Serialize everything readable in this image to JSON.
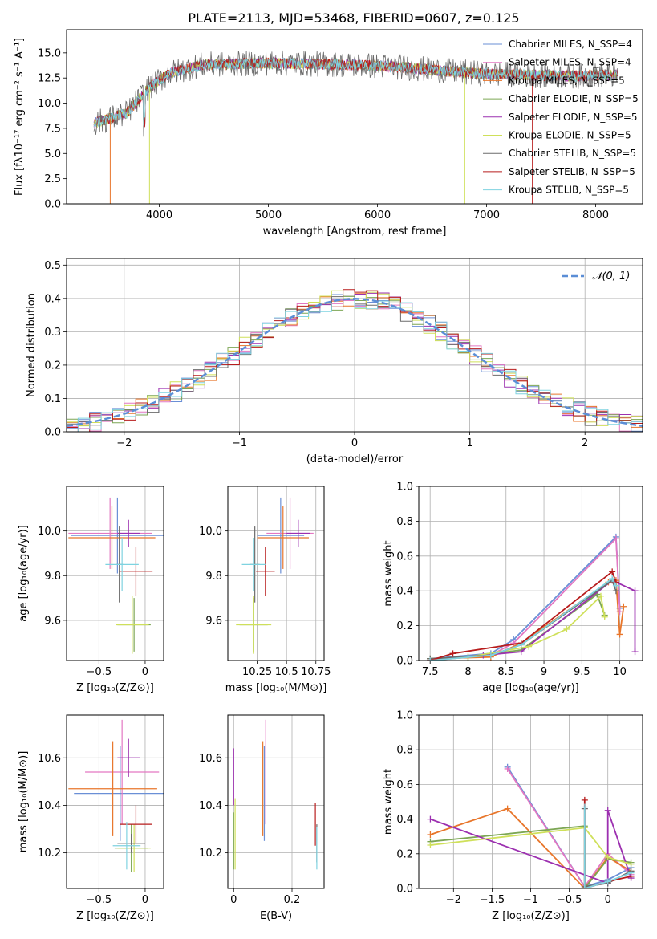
{
  "colors": {
    "chabrier_miles": "#6a8fd6",
    "salpeter_miles": "#e377c2",
    "kroupa_miles": "#e8762b",
    "chabrier_elodie": "#7ca654",
    "salpeter_elodie": "#9c30b0",
    "kroupa_elodie": "#cfe05a",
    "chabrier_stelib": "#6b6b6b",
    "salpeter_stelib": "#b71c1c",
    "kroupa_stelib": "#7fd3e0",
    "gaussian": "#5b8ed6"
  },
  "chart_data": [
    {
      "id": "spectrum",
      "type": "line",
      "title": "PLATE=2113, MJD=53468, FIBERID=0607, z=0.125",
      "xlabel": "wavelength [Angstrom, rest frame]",
      "ylabel": "Flux [fλ10⁻¹⁷ erg cm⁻² s⁻¹ A⁻¹]",
      "xlim": [
        3150,
        8430
      ],
      "ylim": [
        0,
        17.3
      ],
      "xticks": [
        4000,
        5000,
        6000,
        7000,
        8000
      ],
      "yticks": [
        0.0,
        2.5,
        5.0,
        7.5,
        10.0,
        12.5,
        15.0
      ],
      "legend_position": "right",
      "legend": [
        {
          "key": "chabrier_miles",
          "label": "Chabrier MILES, N_SSP=4"
        },
        {
          "key": "salpeter_miles",
          "label": "Salpeter MILES, N_SSP=4"
        },
        {
          "key": "kroupa_miles",
          "label": "Kroupa MILES, N_SSP=5"
        },
        {
          "key": "chabrier_elodie",
          "label": "Chabrier ELODIE, N_SSP=5"
        },
        {
          "key": "salpeter_elodie",
          "label": "Salpeter ELODIE, N_SSP=5"
        },
        {
          "key": "kroupa_elodie",
          "label": "Kroupa ELODIE, N_SSP=5"
        },
        {
          "key": "chabrier_stelib",
          "label": "Chabrier STELIB, N_SSP=5"
        },
        {
          "key": "salpeter_stelib",
          "label": "Salpeter STELIB, N_SSP=5"
        },
        {
          "key": "kroupa_stelib",
          "label": "Kroupa STELIB, N_SSP=5"
        }
      ],
      "continuum_wavelength": [
        3400,
        3700,
        3900,
        4100,
        4400,
        4700,
        5000,
        5400,
        5800,
        6200,
        6600,
        7000,
        7400,
        7800,
        8200
      ],
      "continuum_flux": [
        8.0,
        9.0,
        11.5,
        13.0,
        13.8,
        13.9,
        14.0,
        13.9,
        13.8,
        13.6,
        13.2,
        12.9,
        12.8,
        12.7,
        12.8
      ],
      "dropouts": [
        {
          "x": 3550,
          "key": "kroupa_miles"
        },
        {
          "x": 3910,
          "key": "kroupa_elodie"
        },
        {
          "x": 6800,
          "key": "kroupa_elodie"
        },
        {
          "x": 7420,
          "key": "salpeter_stelib"
        }
      ]
    },
    {
      "id": "residuals",
      "type": "line",
      "xlabel": "(data-model)/error",
      "ylabel": "Normed distribution",
      "xlim": [
        -2.5,
        2.5
      ],
      "ylim": [
        0,
        0.52
      ],
      "xticks": [
        -2,
        -1,
        0,
        1,
        2
      ],
      "yticks": [
        0.0,
        0.1,
        0.2,
        0.3,
        0.4,
        0.5
      ],
      "grid": true,
      "legend_position": "top-right",
      "legend_label": "𝒩(0, 1)",
      "bin_width": 0.1,
      "gaussian": {
        "mean": 0,
        "sigma": 1
      }
    },
    {
      "id": "age-vs-z",
      "type": "scatter",
      "xlabel": "Z [log₁₀(Z/Z⊙)]",
      "ylabel": "age  [log₁₀(age/yr)]",
      "xlim": [
        -0.85,
        0.2
      ],
      "ylim": [
        9.42,
        10.2
      ],
      "xticks": [
        -0.5,
        0.0
      ],
      "yticks": [
        9.6,
        9.8,
        10.0
      ],
      "grid": true,
      "points": [
        {
          "key": "chabrier_miles",
          "x": -0.3,
          "y": 9.98,
          "xerr": 0.5,
          "yerr": 0.17
        },
        {
          "key": "salpeter_miles",
          "x": -0.38,
          "y": 9.99,
          "xerr": 0.45,
          "yerr": 0.16
        },
        {
          "key": "kroupa_miles",
          "x": -0.36,
          "y": 9.97,
          "xerr": 0.47,
          "yerr": 0.14
        },
        {
          "key": "chabrier_elodie",
          "x": -0.12,
          "y": 9.58,
          "xerr": 0.18,
          "yerr": 0.12
        },
        {
          "key": "salpeter_elodie",
          "x": -0.18,
          "y": 9.99,
          "xerr": 0.12,
          "yerr": 0.06
        },
        {
          "key": "kroupa_elodie",
          "x": -0.14,
          "y": 9.58,
          "xerr": 0.18,
          "yerr": 0.13
        },
        {
          "key": "chabrier_stelib",
          "x": -0.28,
          "y": 9.85,
          "xerr": 0.04,
          "yerr": 0.17
        },
        {
          "key": "salpeter_stelib",
          "x": -0.1,
          "y": 9.82,
          "xerr": 0.18,
          "yerr": 0.11
        },
        {
          "key": "kroupa_stelib",
          "x": -0.25,
          "y": 9.85,
          "xerr": 0.18,
          "yerr": 0.12
        }
      ]
    },
    {
      "id": "age-vs-mass",
      "type": "scatter",
      "xlabel": "mass [log₁₀(M/M⊙)]",
      "ylabel": "",
      "xlim": [
        10.0,
        10.82
      ],
      "ylim": [
        9.42,
        10.2
      ],
      "xticks": [
        10.25,
        10.5,
        10.75
      ],
      "yticks": [
        9.6,
        9.8,
        10.0
      ],
      "grid": true,
      "points": [
        {
          "key": "chabrier_miles",
          "x": 10.45,
          "y": 9.98,
          "xerr": 0.2,
          "yerr": 0.17
        },
        {
          "key": "salpeter_miles",
          "x": 10.53,
          "y": 9.99,
          "xerr": 0.2,
          "yerr": 0.16
        },
        {
          "key": "kroupa_miles",
          "x": 10.47,
          "y": 9.97,
          "xerr": 0.22,
          "yerr": 0.14
        },
        {
          "key": "chabrier_elodie",
          "x": 10.22,
          "y": 9.58,
          "xerr": 0.12,
          "yerr": 0.12
        },
        {
          "key": "salpeter_elodie",
          "x": 10.6,
          "y": 9.99,
          "xerr": 0.1,
          "yerr": 0.06
        },
        {
          "key": "kroupa_elodie",
          "x": 10.22,
          "y": 9.58,
          "xerr": 0.15,
          "yerr": 0.13
        },
        {
          "key": "chabrier_stelib",
          "x": 10.23,
          "y": 9.85,
          "xerr": 0.04,
          "yerr": 0.17
        },
        {
          "key": "salpeter_stelib",
          "x": 10.32,
          "y": 9.82,
          "xerr": 0.08,
          "yerr": 0.11
        },
        {
          "key": "kroupa_stelib",
          "x": 10.22,
          "y": 9.85,
          "xerr": 0.1,
          "yerr": 0.12
        }
      ]
    },
    {
      "id": "mass-weight-vs-age",
      "type": "line",
      "xlabel": "age  [log₁₀(age/yr)]",
      "ylabel": "mass weight",
      "xlim": [
        7.35,
        10.3
      ],
      "ylim": [
        0,
        1.0
      ],
      "xticks": [
        7.5,
        8.0,
        8.5,
        9.0,
        9.5,
        10.0
      ],
      "yticks": [
        0.0,
        0.2,
        0.4,
        0.6,
        0.8,
        1.0
      ],
      "grid": true,
      "series": [
        {
          "key": "chabrier_miles",
          "x": [
            7.5,
            8.3,
            8.6,
            9.95,
            10.0
          ],
          "y": [
            0.01,
            0.04,
            0.12,
            0.71,
            0.3
          ]
        },
        {
          "key": "salpeter_miles",
          "x": [
            7.5,
            8.3,
            8.6,
            9.95,
            10.0
          ],
          "y": [
            0.0,
            0.03,
            0.1,
            0.7,
            0.28
          ]
        },
        {
          "key": "kroupa_miles",
          "x": [
            7.5,
            8.3,
            8.7,
            9.85,
            9.95,
            10.0,
            10.05
          ],
          "y": [
            0.01,
            0.02,
            0.1,
            0.45,
            0.46,
            0.15,
            0.31
          ]
        },
        {
          "key": "chabrier_elodie",
          "x": [
            7.5,
            8.0,
            8.7,
            9.7,
            9.8
          ],
          "y": [
            0.01,
            0.02,
            0.06,
            0.38,
            0.26
          ]
        },
        {
          "key": "salpeter_elodie",
          "x": [
            7.5,
            8.2,
            8.7,
            9.9,
            10.2,
            10.2
          ],
          "y": [
            0.0,
            0.03,
            0.05,
            0.46,
            0.4,
            0.05
          ]
        },
        {
          "key": "kroupa_elodie",
          "x": [
            7.5,
            8.0,
            8.8,
            9.3,
            9.75,
            9.8
          ],
          "y": [
            0.0,
            0.02,
            0.08,
            0.18,
            0.37,
            0.25
          ]
        },
        {
          "key": "chabrier_stelib",
          "x": [
            7.5,
            8.3,
            8.7,
            9.9,
            9.95
          ],
          "y": [
            0.01,
            0.03,
            0.09,
            0.46,
            0.4
          ]
        },
        {
          "key": "salpeter_stelib",
          "x": [
            7.5,
            7.8,
            8.7,
            9.9,
            9.95
          ],
          "y": [
            0.0,
            0.04,
            0.1,
            0.51,
            0.45
          ]
        },
        {
          "key": "kroupa_stelib",
          "x": [
            7.5,
            8.3,
            8.7,
            9.9,
            9.95
          ],
          "y": [
            0.0,
            0.03,
            0.09,
            0.47,
            0.43
          ]
        }
      ]
    },
    {
      "id": "mass-vs-z",
      "type": "scatter",
      "xlabel": "Z [log₁₀(Z/Z⊙)]",
      "ylabel": "mass [log₁₀(M/M⊙)]",
      "xlim": [
        -0.85,
        0.2
      ],
      "ylim": [
        10.05,
        10.78
      ],
      "xticks": [
        -0.5,
        0.0
      ],
      "yticks": [
        10.2,
        10.4,
        10.6
      ],
      "grid": true,
      "points": [
        {
          "key": "chabrier_miles",
          "x": -0.27,
          "y": 10.45,
          "xerr": 0.5,
          "yerr": 0.2
        },
        {
          "key": "salpeter_miles",
          "x": -0.25,
          "y": 10.54,
          "xerr": 0.4,
          "yerr": 0.22
        },
        {
          "key": "kroupa_miles",
          "x": -0.35,
          "y": 10.47,
          "xerr": 0.48,
          "yerr": 0.2
        },
        {
          "key": "chabrier_elodie",
          "x": -0.15,
          "y": 10.22,
          "xerr": 0.18,
          "yerr": 0.1
        },
        {
          "key": "salpeter_elodie",
          "x": -0.18,
          "y": 10.6,
          "xerr": 0.12,
          "yerr": 0.08
        },
        {
          "key": "kroupa_elodie",
          "x": -0.12,
          "y": 10.22,
          "xerr": 0.18,
          "yerr": 0.1
        },
        {
          "key": "chabrier_stelib",
          "x": -0.15,
          "y": 10.24,
          "xerr": 0.15,
          "yerr": 0.04
        },
        {
          "key": "salpeter_stelib",
          "x": -0.1,
          "y": 10.32,
          "xerr": 0.17,
          "yerr": 0.08
        },
        {
          "key": "kroupa_stelib",
          "x": -0.2,
          "y": 10.23,
          "xerr": 0.15,
          "yerr": 0.1
        }
      ]
    },
    {
      "id": "mass-vs-ebv",
      "type": "scatter",
      "xlabel": "E(B-V)",
      "ylabel": "",
      "xlim": [
        -0.02,
        0.31
      ],
      "ylim": [
        10.05,
        10.78
      ],
      "xticks": [
        0.0,
        0.2
      ],
      "yticks": [
        10.2,
        10.4,
        10.6
      ],
      "grid": true,
      "points": [
        {
          "key": "chabrier_miles",
          "x": 0.105,
          "y": 10.45,
          "xerr": 0,
          "yerr": 0.2
        },
        {
          "key": "salpeter_miles",
          "x": 0.11,
          "y": 10.54,
          "xerr": 0,
          "yerr": 0.22
        },
        {
          "key": "kroupa_miles",
          "x": 0.1,
          "y": 10.47,
          "xerr": 0,
          "yerr": 0.2
        },
        {
          "key": "chabrier_elodie",
          "x": 0.0,
          "y": 10.25,
          "xerr": 0,
          "yerr": 0.12
        },
        {
          "key": "salpeter_elodie",
          "x": 0.0,
          "y": 10.52,
          "xerr": 0,
          "yerr": 0.12
        },
        {
          "key": "kroupa_elodie",
          "x": 0.005,
          "y": 10.28,
          "xerr": 0,
          "yerr": 0.15
        },
        {
          "key": "chabrier_stelib",
          "x": 0.285,
          "y": 10.24,
          "xerr": 0,
          "yerr": 0.08
        },
        {
          "key": "salpeter_stelib",
          "x": 0.28,
          "y": 10.32,
          "xerr": 0,
          "yerr": 0.09
        },
        {
          "key": "kroupa_stelib",
          "x": 0.285,
          "y": 10.22,
          "xerr": 0,
          "yerr": 0.09
        }
      ]
    },
    {
      "id": "mass-weight-vs-z",
      "type": "line",
      "xlabel": "Z [log₁₀(Z/Z⊙)]",
      "ylabel": "mass weight",
      "xlim": [
        -2.45,
        0.45
      ],
      "ylim": [
        0,
        1.0
      ],
      "xticks": [
        -2.0,
        -1.5,
        -1.0,
        -0.5,
        0.0
      ],
      "yticks": [
        0.0,
        0.2,
        0.4,
        0.6,
        0.8,
        1.0
      ],
      "grid": true,
      "series": [
        {
          "key": "chabrier_miles",
          "x": [
            -1.3,
            -0.3,
            0.0,
            0.3
          ],
          "y": [
            0.7,
            0.01,
            0.05,
            0.12
          ]
        },
        {
          "key": "salpeter_miles",
          "x": [
            -1.3,
            -0.3,
            0.0,
            0.3
          ],
          "y": [
            0.69,
            0.01,
            0.2,
            0.08
          ]
        },
        {
          "key": "kroupa_miles",
          "x": [
            -2.3,
            -1.3,
            -0.3,
            0.0,
            0.3
          ],
          "y": [
            0.31,
            0.46,
            0.0,
            0.18,
            0.1
          ]
        },
        {
          "key": "chabrier_elodie",
          "x": [
            -2.3,
            -0.3,
            -0.3,
            0.0,
            0.3
          ],
          "y": [
            0.27,
            0.36,
            0.0,
            0.17,
            0.15
          ]
        },
        {
          "key": "salpeter_elodie",
          "x": [
            -2.3,
            0.0,
            0.0,
            0.3
          ],
          "y": [
            0.4,
            0.03,
            0.45,
            0.06
          ]
        },
        {
          "key": "kroupa_elodie",
          "x": [
            -2.3,
            -0.3,
            0.0,
            0.3
          ],
          "y": [
            0.25,
            0.35,
            0.18,
            0.14
          ]
        },
        {
          "key": "chabrier_stelib",
          "x": [
            -0.3,
            -0.3,
            0.0,
            0.3
          ],
          "y": [
            0.46,
            0.01,
            0.03,
            0.1
          ]
        },
        {
          "key": "salpeter_stelib",
          "x": [
            -0.3,
            -0.3,
            0.0,
            0.3
          ],
          "y": [
            0.51,
            0.0,
            0.04,
            0.07
          ]
        },
        {
          "key": "kroupa_stelib",
          "x": [
            -0.3,
            -0.3,
            0.0,
            0.3
          ],
          "y": [
            0.47,
            0.0,
            0.04,
            0.09
          ]
        }
      ]
    }
  ]
}
